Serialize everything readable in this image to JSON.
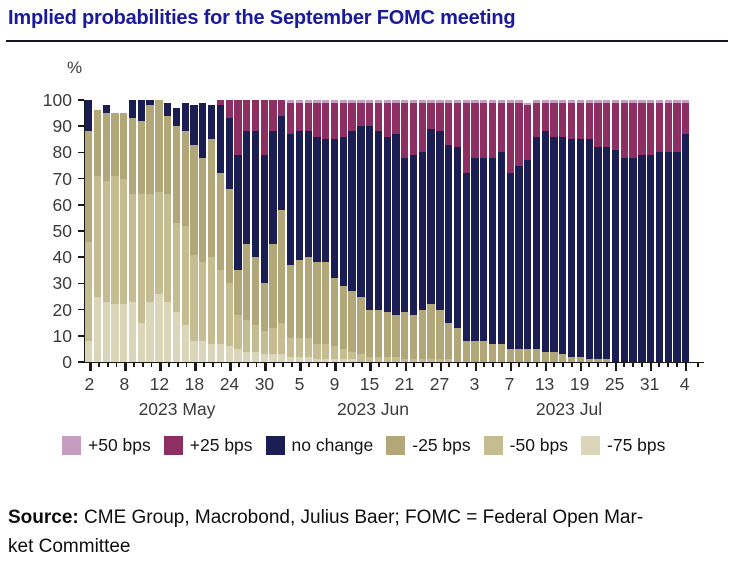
{
  "title": "Implied probabilities for the September FOMC meeting",
  "y_axis": {
    "unit_label": "%",
    "ticks": [
      100,
      90,
      80,
      70,
      60,
      50,
      40,
      30,
      20,
      10,
      0
    ]
  },
  "x_axis": {
    "ticks": [
      {
        "label": "2",
        "bar": 0
      },
      {
        "label": "8",
        "bar": 4
      },
      {
        "label": "12",
        "bar": 8
      },
      {
        "label": "18",
        "bar": 12
      },
      {
        "label": "24",
        "bar": 16
      },
      {
        "label": "30",
        "bar": 20
      },
      {
        "label": "5",
        "bar": 24
      },
      {
        "label": "9",
        "bar": 28
      },
      {
        "label": "15",
        "bar": 32
      },
      {
        "label": "21",
        "bar": 36
      },
      {
        "label": "27",
        "bar": 40
      },
      {
        "label": "3",
        "bar": 44
      },
      {
        "label": "7",
        "bar": 48
      },
      {
        "label": "13",
        "bar": 52
      },
      {
        "label": "19",
        "bar": 56
      },
      {
        "label": "25",
        "bar": 60
      },
      {
        "label": "31",
        "bar": 64
      },
      {
        "label": "4",
        "bar": 68
      }
    ],
    "month_labels": [
      "2023 May",
      "2023 Jun",
      "2023 Jul"
    ]
  },
  "legend": [
    {
      "label": "+50 bps",
      "color": "#c59dbe"
    },
    {
      "label": "+25 bps",
      "color": "#8e2f63"
    },
    {
      "label": "no change",
      "color": "#1a1e52"
    },
    {
      "label": "-25 bps",
      "color": "#b1a778"
    },
    {
      "label": "-50 bps",
      "color": "#c5bc92"
    },
    {
      "label": "-75 bps",
      "color": "#dbd6ba"
    }
  ],
  "source": {
    "label": "Source:",
    "text_line1": " CME Group, Macrobond, Julius Baer; FOMC = Federal Open Mar-",
    "text_line2": "ket Committee"
  },
  "colors": {
    "title_blue": "#1a1a9c",
    "axis": "#1a1a1a",
    "axis_text": "#3c3c3c"
  },
  "chart_data": {
    "type": "bar",
    "stacked": true,
    "unit": "%",
    "title": "Implied probabilities for the September FOMC meeting",
    "xlabel": "",
    "ylabel": "%",
    "ylim": [
      0,
      100
    ],
    "grid": false,
    "legend_position": "bottom",
    "stack_order_bottom_to_top": [
      "-75 bps",
      "-50 bps",
      "-25 bps",
      "no change",
      "+25 bps",
      "+50 bps"
    ],
    "categories": [
      "May 2",
      "May 3",
      "May 4",
      "May 5",
      "May 8",
      "May 9",
      "May 10",
      "May 11",
      "May 12",
      "May 15",
      "May 16",
      "May 17",
      "May 18",
      "May 19",
      "May 22",
      "May 23",
      "May 24",
      "May 25",
      "May 26",
      "May 29",
      "May 30",
      "May 31",
      "Jun 1",
      "Jun 2",
      "Jun 5",
      "Jun 6",
      "Jun 7",
      "Jun 8",
      "Jun 9",
      "Jun 12",
      "Jun 13",
      "Jun 14",
      "Jun 15",
      "Jun 16",
      "Jun 19",
      "Jun 20",
      "Jun 21",
      "Jun 22",
      "Jun 23",
      "Jun 26",
      "Jun 27",
      "Jun 28",
      "Jun 29",
      "Jun 30",
      "Jul 3",
      "Jul 4",
      "Jul 5",
      "Jul 6",
      "Jul 7",
      "Jul 10",
      "Jul 11",
      "Jul 12",
      "Jul 13",
      "Jul 14",
      "Jul 17",
      "Jul 18",
      "Jul 19",
      "Jul 20",
      "Jul 21",
      "Jul 24",
      "Jul 25",
      "Jul 26",
      "Jul 27",
      "Jul 28",
      "Jul 31",
      "Aug 1",
      "Aug 2",
      "Aug 3",
      "Aug 4"
    ],
    "series": [
      {
        "name": "-75 bps",
        "color": "#dbd6ba",
        "values": [
          8,
          25,
          23,
          22,
          22,
          23,
          15,
          23,
          26,
          23,
          19,
          14,
          8,
          8,
          7,
          7,
          6,
          5,
          4,
          4,
          3,
          3,
          3,
          2,
          2,
          2,
          1,
          1,
          1,
          1,
          1,
          0,
          0,
          0,
          0,
          0,
          0,
          0,
          0,
          0,
          0,
          0,
          0,
          0,
          0,
          0,
          0,
          0,
          0,
          0,
          0,
          0,
          0,
          0,
          0,
          0,
          0,
          0,
          0,
          0,
          0,
          0,
          0,
          0,
          0,
          0,
          0,
          0,
          0
        ]
      },
      {
        "name": "-50 bps",
        "color": "#c5bc92",
        "values": [
          38,
          46,
          46,
          49,
          48,
          41,
          49,
          41,
          39,
          41,
          34,
          38,
          33,
          30,
          33,
          28,
          24,
          13,
          12,
          10,
          9,
          10,
          12,
          7,
          7,
          7,
          6,
          6,
          5,
          4,
          3,
          3,
          2,
          2,
          2,
          2,
          1,
          1,
          1,
          1,
          1,
          1,
          0,
          0,
          0,
          0,
          0,
          0,
          0,
          0,
          0,
          0,
          0,
          0,
          0,
          0,
          0,
          0,
          0,
          0,
          0,
          0,
          0,
          0,
          0,
          0,
          0,
          0,
          0
        ]
      },
      {
        "name": "-25 bps",
        "color": "#b1a778",
        "values": [
          42,
          25,
          26,
          24,
          25,
          29,
          28,
          34,
          35,
          30,
          37,
          36,
          42,
          40,
          45,
          37,
          36,
          17,
          29,
          26,
          18,
          32,
          43,
          28,
          30,
          31,
          31,
          31,
          26,
          24,
          23,
          22,
          18,
          18,
          17,
          16,
          18,
          17,
          19,
          21,
          19,
          14,
          13,
          8,
          8,
          8,
          7,
          7,
          5,
          5,
          5,
          5,
          4,
          4,
          3,
          2,
          2,
          1,
          1,
          1,
          0,
          0,
          0,
          0,
          0,
          0,
          0,
          0,
          0
        ]
      },
      {
        "name": "no change",
        "color": "#1a1e52",
        "values": [
          12,
          0,
          3,
          0,
          0,
          7,
          8,
          2,
          0,
          5,
          7,
          11,
          15,
          21,
          13,
          26,
          27,
          44,
          43,
          48,
          49,
          43,
          36,
          50,
          49,
          48,
          48,
          47,
          53,
          57,
          61,
          65,
          70,
          68,
          67,
          69,
          59,
          61,
          60,
          67,
          68,
          68,
          69,
          64,
          70,
          70,
          71,
          73,
          67,
          70,
          72,
          81,
          84,
          82,
          83,
          83,
          83,
          84,
          81,
          81,
          81,
          78,
          78,
          79,
          79,
          80,
          80,
          80,
          87
        ]
      },
      {
        "name": "+25 bps",
        "color": "#8e2f63",
        "values": [
          0,
          0,
          0,
          0,
          0,
          0,
          0,
          0,
          0,
          0,
          0,
          0,
          0,
          0,
          0,
          2,
          7,
          21,
          12,
          12,
          21,
          12,
          6,
          12,
          11,
          11,
          13,
          14,
          14,
          13,
          11,
          9,
          9,
          11,
          13,
          12,
          21,
          20,
          19,
          10,
          11,
          16,
          17,
          27,
          21,
          21,
          21,
          19,
          27,
          24,
          21,
          13,
          11,
          13,
          13,
          14,
          14,
          14,
          17,
          17,
          18,
          21,
          21,
          20,
          20,
          19,
          19,
          19,
          12
        ]
      },
      {
        "name": "+50 bps",
        "color": "#c59dbe",
        "values": [
          0,
          0,
          0,
          0,
          0,
          0,
          0,
          0,
          0,
          0,
          0,
          0,
          0,
          0,
          0,
          0,
          0,
          0,
          0,
          0,
          0,
          0,
          0,
          1,
          1,
          1,
          1,
          1,
          1,
          1,
          1,
          1,
          1,
          1,
          1,
          1,
          1,
          1,
          1,
          1,
          1,
          1,
          1,
          1,
          1,
          1,
          1,
          1,
          1,
          1,
          1,
          1,
          1,
          1,
          1,
          1,
          1,
          1,
          1,
          1,
          1,
          1,
          1,
          1,
          1,
          1,
          1,
          1,
          1
        ]
      }
    ]
  }
}
